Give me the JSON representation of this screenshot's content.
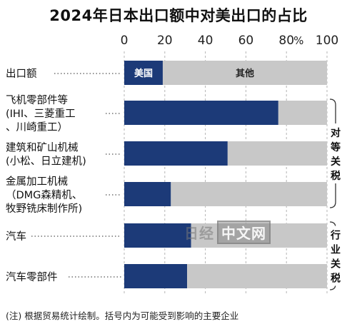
{
  "title": "2024年日本出口额中对美出口的占比",
  "chart_data": {
    "type": "bar",
    "orientation": "horizontal",
    "stacked": true,
    "xlim": [
      0,
      100
    ],
    "x_ticks": [
      "0",
      "20",
      "40",
      "60",
      "80",
      "100"
    ],
    "x_unit": "%",
    "categories": [
      [
        "出口额"
      ],
      [
        "飞机零部件等",
        "(IHI、三菱重工",
        "、川崎重工）"
      ],
      [
        "建筑和矿山机械",
        "(小松、日立建机)"
      ],
      [
        "金属加工机械",
        "（DMG森精机、",
        "牧野铣床制作所)"
      ],
      [
        "汽车"
      ],
      [
        "汽车零部件"
      ]
    ],
    "series": [
      {
        "name": "美国",
        "color": "#1c3a78",
        "values": [
          19,
          76,
          51,
          23,
          33,
          31
        ]
      },
      {
        "name": "其他",
        "color": "#c8c8c8",
        "values": [
          81,
          24,
          49,
          77,
          67,
          69
        ]
      }
    ],
    "group_labels": [
      {
        "label": "对等关税",
        "rows": [
          1,
          3
        ]
      },
      {
        "label": "行业关税",
        "rows": [
          4,
          5
        ]
      }
    ]
  },
  "footnote": "(注) 根据贸易统计绘制。括号内为可能受到影响的主要企业",
  "watermark": {
    "left": "日经",
    "right": "中文网"
  }
}
